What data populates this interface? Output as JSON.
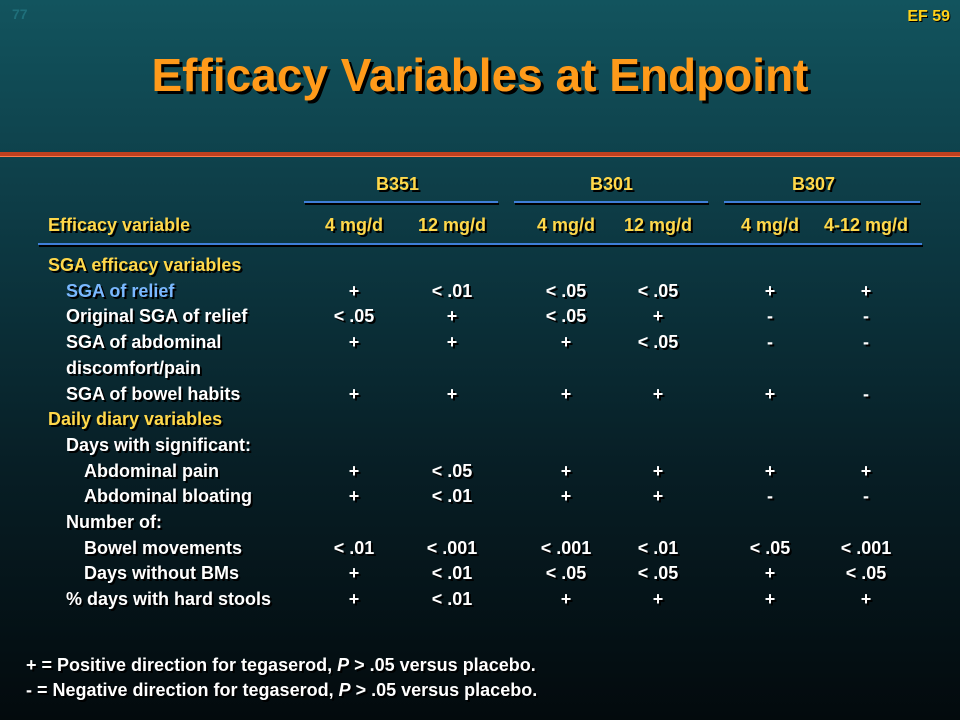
{
  "slide": {
    "number": "77",
    "code": "EF 59",
    "title": "Efficacy Variables at Endpoint"
  },
  "groups": [
    "B351",
    "B301",
    "B307"
  ],
  "header": {
    "variable_label": "Efficacy variable",
    "doses": [
      "4 mg/d",
      "12 mg/d",
      "4 mg/d",
      "12 mg/d",
      "4 mg/d",
      "4-12 mg/d"
    ]
  },
  "rows": [
    {
      "label": "SGA efficacy variables",
      "values": [
        "",
        "",
        "",
        "",
        "",
        ""
      ]
    },
    {
      "label": "SGA of relief",
      "values": [
        "+",
        "< .01",
        "< .05",
        "< .05",
        "+",
        "+"
      ]
    },
    {
      "label": "Original SGA of relief",
      "values": [
        "< .05",
        "+",
        "< .05",
        "+",
        "-",
        "-"
      ]
    },
    {
      "label": "SGA of abdominal",
      "values": [
        "+",
        "+",
        "+",
        "< .05",
        "-",
        "-"
      ]
    },
    {
      "label": "discomfort/pain",
      "values": [
        "",
        "",
        "",
        "",
        "",
        ""
      ]
    },
    {
      "label": "SGA of bowel habits",
      "values": [
        "+",
        "+",
        "+",
        "+",
        "+",
        "-"
      ]
    },
    {
      "label": "Daily diary variables",
      "values": [
        "",
        "",
        "",
        "",
        "",
        ""
      ]
    },
    {
      "label": "Days with significant:",
      "values": [
        "",
        "",
        "",
        "",
        "",
        ""
      ]
    },
    {
      "label": "Abdominal pain",
      "values": [
        "+",
        "< .05",
        "+",
        "+",
        "+",
        "+"
      ]
    },
    {
      "label": "Abdominal bloating",
      "values": [
        "+",
        "< .01",
        "+",
        "+",
        "-",
        "-"
      ]
    },
    {
      "label": "Number of:",
      "values": [
        "",
        "",
        "",
        "",
        "",
        ""
      ]
    },
    {
      "label": "Bowel movements",
      "values": [
        "< .01",
        "< .001",
        "< .001",
        "< .01",
        "< .05",
        "< .001"
      ]
    },
    {
      "label": "Days without BMs",
      "values": [
        "+",
        "< .01",
        "< .05",
        "< .05",
        "+",
        "< .05"
      ]
    },
    {
      "label": "% days with hard stools",
      "values": [
        "+",
        "< .01",
        "+",
        "+",
        "+",
        "+"
      ]
    }
  ],
  "footnotes": [
    {
      "prefix": "+ = Positive direction for tegaserod, ",
      "italic": "P",
      "suffix": " > .05 versus placebo."
    },
    {
      "prefix": "- = Negative direction for tegaserod, ",
      "italic": "P",
      "suffix": " > .05 versus placebo."
    }
  ],
  "colors": {
    "title": "#ff9a1a",
    "section": "#ffd84a",
    "highlight": "#7ab8ff",
    "rule": "#3f7fd8",
    "title_rule": "#c0401f"
  }
}
